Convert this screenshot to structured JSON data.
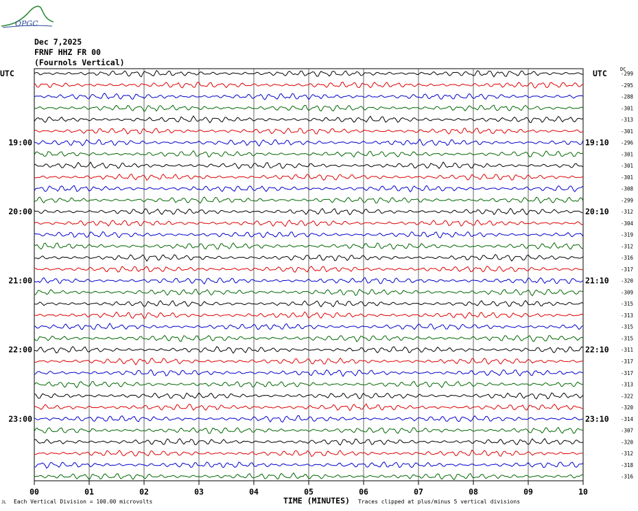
{
  "header": {
    "logo_text": "OPGC",
    "date": "Dec 7,2025",
    "station": "FRNF HHZ FR 00",
    "location": "(Fournols Vertical)"
  },
  "axes": {
    "left_label": "UTC",
    "right_label": "UTC",
    "dc_label": "DC",
    "x_title": "TIME (MINUTES)"
  },
  "footer": {
    "scale_note": "Each Vertical Division =  100.00 microvolts",
    "clip_note": "Traces clipped at plus/minus 5 vertical divisions",
    "corner_mark": "JL"
  },
  "chart_data": {
    "type": "line",
    "title": "",
    "xlabel": "TIME (MINUTES)",
    "ylabel": "UTC",
    "xlim": [
      0,
      10
    ],
    "x_ticks": [
      "00",
      "01",
      "02",
      "03",
      "04",
      "05",
      "06",
      "07",
      "08",
      "09",
      "10"
    ],
    "minutes_per_trace": 10,
    "trace_colors": [
      "#000000",
      "#dd0000",
      "#0000cc",
      "#006600"
    ],
    "left_time_labels": [
      "19:00",
      "20:00",
      "21:00",
      "22:00",
      "23:00"
    ],
    "right_time_labels": [
      "19:10",
      "20:10",
      "21:10",
      "22:10",
      "23:10"
    ],
    "dc_offsets": [
      -299,
      -295,
      -288,
      -301,
      -313,
      -301,
      -296,
      -301,
      -301,
      -301,
      -308,
      -299,
      -312,
      -304,
      -319,
      -312,
      -316,
      -317,
      -320,
      -309,
      -315,
      -313,
      -315,
      -315,
      -311,
      -317,
      -317,
      -313,
      -322,
      -320,
      -314,
      -307,
      -320,
      -312,
      -318,
      -316
    ],
    "num_traces": 36,
    "grid": true
  }
}
